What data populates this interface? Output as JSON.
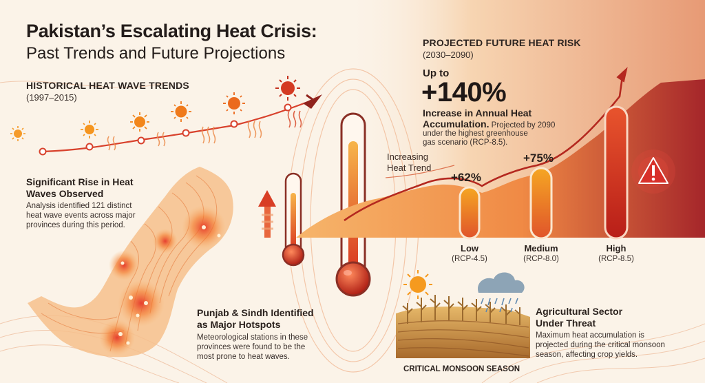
{
  "title": {
    "line1": "Pakistan’s Escalating Heat Crisis:",
    "line2": "Past Trends and Future Projections"
  },
  "historical": {
    "heading": "HISTORICAL HEAT WAVE TRENDS",
    "period": "(1997–2015)",
    "rise_heading_1": "Significant Rise in Heat",
    "rise_heading_2": "Waves Observed",
    "rise_body_1": "Analysis identified 121 distinct",
    "rise_body_2": "heat wave events across major",
    "rise_body_3": "provinces during this period."
  },
  "hotspots": {
    "heading_1": "Punjab & Sindh Identified",
    "heading_2": "as Major Hotspots",
    "body_1": "Meteorological stations in these",
    "body_2": "provinces were found to be the",
    "body_3": "most prone to heat waves."
  },
  "future": {
    "heading": "PROJECTED FUTURE HEAT RISK",
    "period": "(2030–2090)",
    "up_to": "Up to",
    "big_value": "+140%",
    "increase_1": "Increase in Annual Heat",
    "increase_2_bold": "Accumulation.",
    "increase_2_rest": " Projected by 2090",
    "note_1": "under the highest greenhouse",
    "note_2": "gas scenario (RCP-8.5).",
    "trend_label_1": "Increasing",
    "trend_label_2": "Heat Trend"
  },
  "scenarios": [
    {
      "name": "Low",
      "rcp": "(RCP-4.5)",
      "increase": "+62%"
    },
    {
      "name": "Medium",
      "rcp": "(RCP-8.0)",
      "increase": "+75%"
    },
    {
      "name": "High",
      "rcp": "(RCP-8.5)",
      "increase": ""
    }
  ],
  "agriculture": {
    "heading_1": "Agricultural Sector",
    "heading_2": "Under Threat",
    "body_1": "Maximum heat accumulation is",
    "body_2": "projected during the critical monsoon",
    "body_3": "season, affecting crop yields.",
    "season_label": "CRITICAL MONSOON SEASON"
  },
  "icons": {
    "sun": "sun-icon",
    "heat_waves": "heat-wave-icon",
    "thermometer": "thermometer-icon",
    "warning": "warning-icon",
    "rain_cloud": "rain-cloud-icon",
    "arrow_up": "arrow-up-icon"
  },
  "colors": {
    "accent_red": "#c0392b",
    "accent_orange": "#f08a24",
    "dark_red": "#9c2a1f"
  }
}
